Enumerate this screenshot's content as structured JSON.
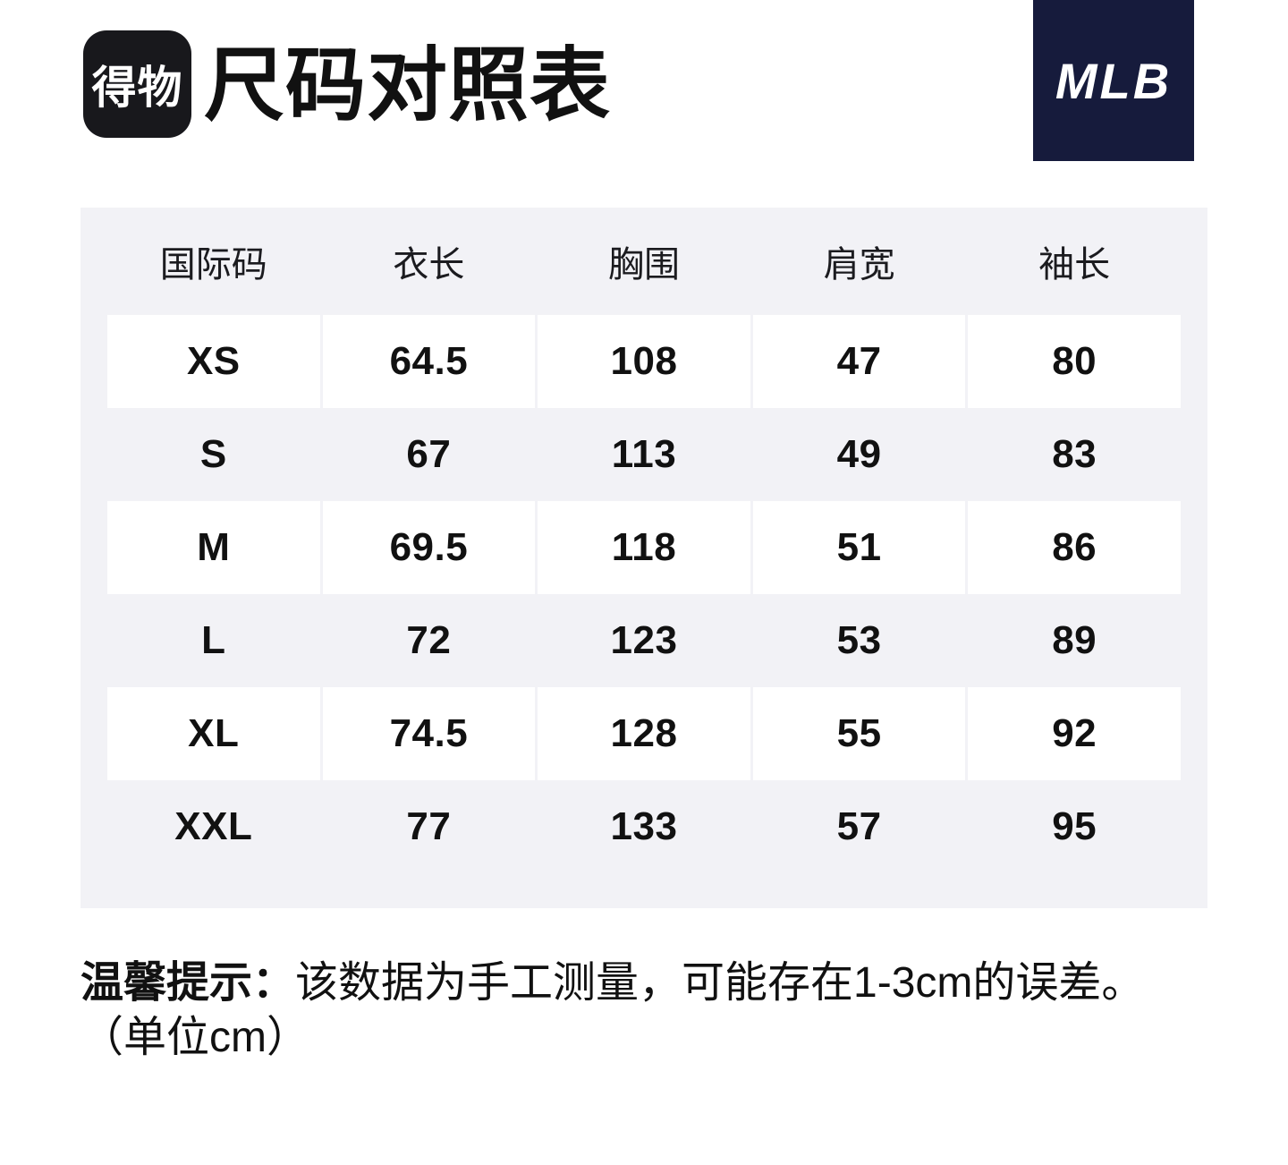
{
  "header": {
    "app_logo_text": "得物",
    "title": "尺码对照表",
    "brand_logo_text": "MLB"
  },
  "table": {
    "columns": [
      "国际码",
      "衣长",
      "胸围",
      "肩宽",
      "袖长"
    ],
    "rows": [
      {
        "size": "XS",
        "values": [
          "64.5",
          "108",
          "47",
          "80"
        ]
      },
      {
        "size": "S",
        "values": [
          "67",
          "113",
          "49",
          "83"
        ]
      },
      {
        "size": "M",
        "values": [
          "69.5",
          "118",
          "51",
          "86"
        ]
      },
      {
        "size": "L",
        "values": [
          "72",
          "123",
          "53",
          "89"
        ]
      },
      {
        "size": "XL",
        "values": [
          "74.5",
          "128",
          "55",
          "92"
        ]
      },
      {
        "size": "XXL",
        "values": [
          "77",
          "133",
          "57",
          "95"
        ]
      }
    ]
  },
  "footer": {
    "tip_label": "温馨提示：",
    "tip_text": "该数据为手工测量，可能存在1-3cm的误差。",
    "unit_note": "（单位cm）"
  },
  "colors": {
    "panel_bg": "#f2f2f6",
    "row_white": "#ffffff",
    "mlb_navy": "#161b3c",
    "dewu_black": "#18181c",
    "text": "#111111"
  }
}
